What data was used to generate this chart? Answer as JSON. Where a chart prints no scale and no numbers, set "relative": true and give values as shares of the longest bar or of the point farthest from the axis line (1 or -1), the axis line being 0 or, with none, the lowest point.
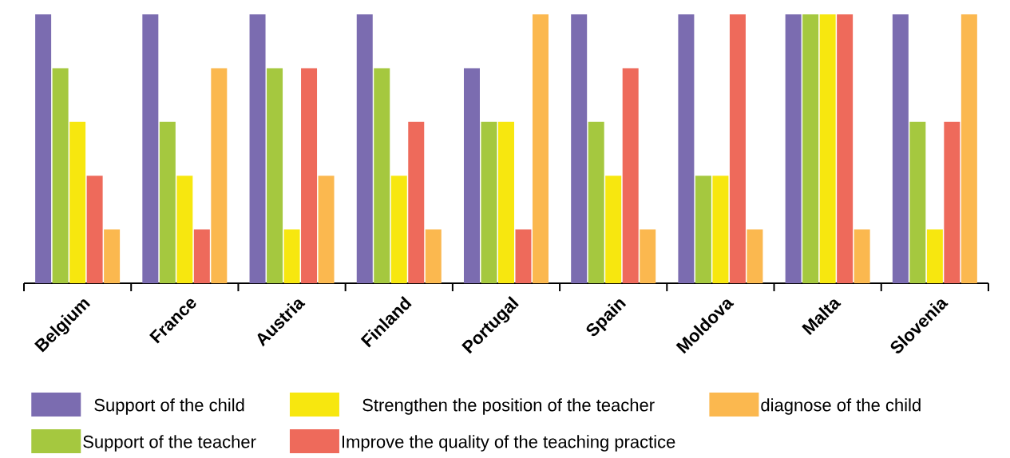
{
  "chart_data": {
    "type": "bar",
    "relative": true,
    "legend": "bottom",
    "categories": [
      "Belgium",
      "France",
      "Austria",
      "Finland",
      "Portugal",
      "Spain",
      "Moldova",
      "Malta",
      "Slovenia"
    ],
    "series": [
      {
        "name": "Support of the child",
        "color": "#7b6cb0",
        "values": [
          1,
          1,
          1,
          1,
          0.8,
          1,
          1,
          1,
          1
        ]
      },
      {
        "name": "Support of the teacher",
        "color": "#a5c83f",
        "values": [
          0.8,
          0.6,
          0.8,
          0.8,
          0.6,
          0.6,
          0.4,
          1,
          0.6
        ]
      },
      {
        "name": "Strengthen the position of the teacher",
        "color": "#f7e70f",
        "values": [
          0.6,
          0.4,
          0.2,
          0.4,
          0.6,
          0.4,
          0.4,
          1,
          0.2
        ]
      },
      {
        "name": "Improve the quality of the teaching practice",
        "color": "#ee6a5b",
        "values": [
          0.4,
          0.2,
          0.8,
          0.6,
          0.2,
          0.8,
          1,
          1,
          0.6
        ]
      },
      {
        "name": "diagnose of the child",
        "color": "#fbb84f",
        "values": [
          0.2,
          0.8,
          0.4,
          0.2,
          1,
          0.2,
          0.2,
          0.2,
          1
        ]
      }
    ]
  }
}
